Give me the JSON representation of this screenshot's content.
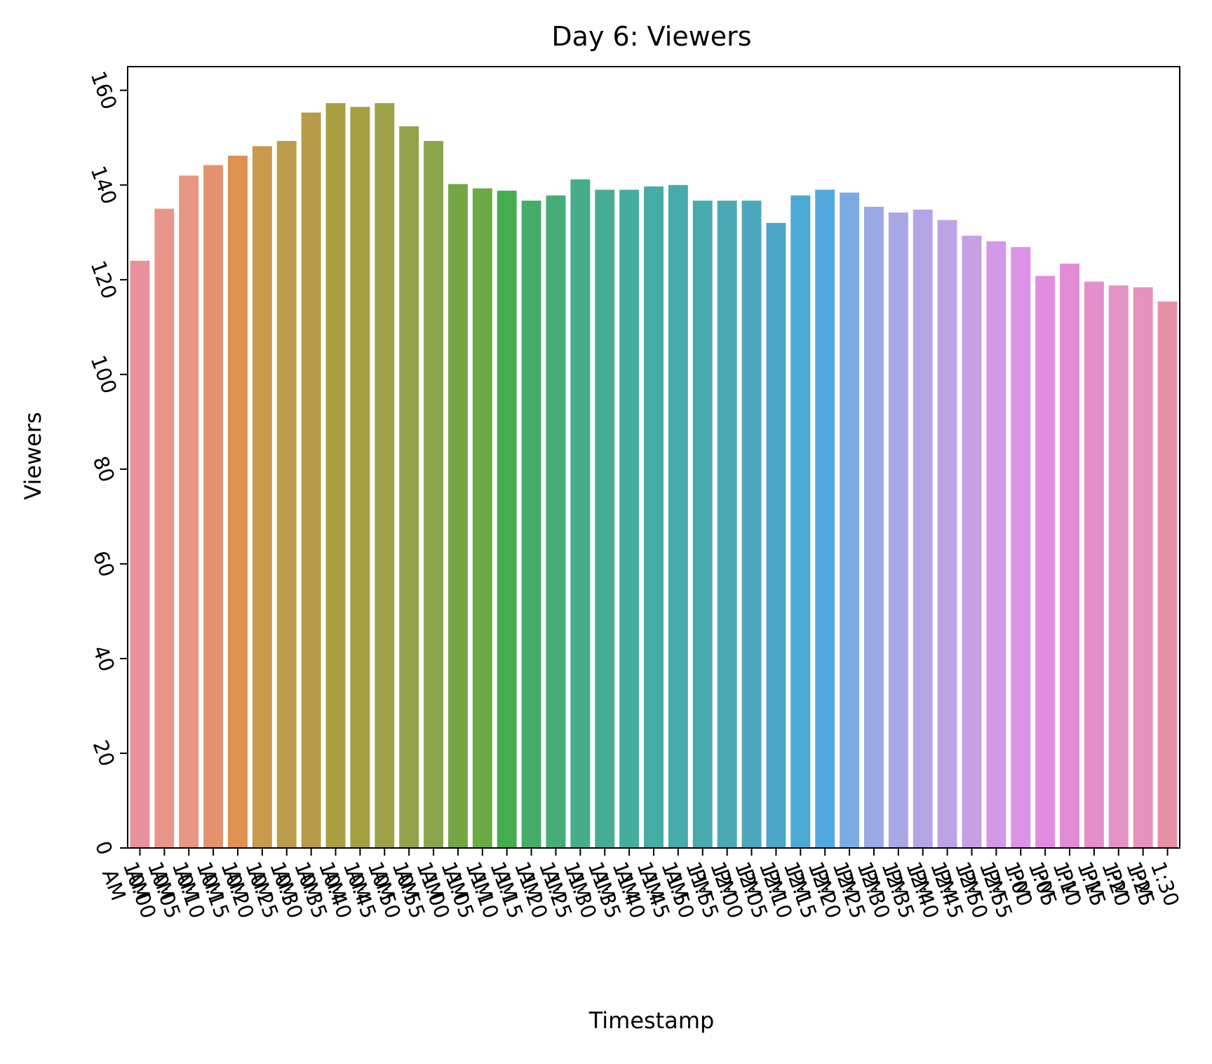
{
  "chart_data": {
    "type": "bar",
    "title": "Day 6: Viewers",
    "xlabel": "Timestamp",
    "ylabel": "Viewers",
    "ylim": [
      0,
      165
    ],
    "yticks": [
      0,
      20,
      40,
      60,
      80,
      100,
      120,
      140,
      160
    ],
    "categories": [
      "10:00 AM",
      "10:05 AM",
      "10:10 AM",
      "10:15 AM",
      "10:20 AM",
      "10:25 AM",
      "10:30 AM",
      "10:35 AM",
      "10:40 AM",
      "10:45 AM",
      "10:50 AM",
      "10:55 AM",
      "11:00 AM",
      "11:05 AM",
      "11:10 AM",
      "11:15 AM",
      "11:20 AM",
      "11:25 AM",
      "11:30 AM",
      "11:35 AM",
      "11:40 AM",
      "11:45 AM",
      "11:50 AM",
      "11:55 AM",
      "12:00 PM",
      "12:05 PM",
      "12:10 PM",
      "12:15 PM",
      "12:20 PM",
      "12:25 PM",
      "12:30 PM",
      "12:35 PM",
      "12:40 PM",
      "12:45 PM",
      "12:50 PM",
      "12:55 PM",
      "1:00 PM",
      "1:05 PM",
      "1:10 PM",
      "1:15 PM",
      "1:20 PM",
      "1:25 PM",
      "1:30 PM"
    ],
    "values": [
      124,
      135,
      142,
      144.2,
      146.2,
      148.2,
      149.3,
      155.3,
      157.3,
      156.5,
      157.3,
      152.4,
      149.3,
      140.2,
      139.3,
      138.8,
      136.7,
      137.8,
      141.2,
      139,
      139,
      139.7,
      140,
      136.7,
      136.7,
      136.7,
      132,
      137.8,
      139,
      138.4,
      135.4,
      134.2,
      134.8,
      132.6,
      129.3,
      128.1,
      126.9,
      120.8,
      123.4,
      119.6,
      118.8,
      118.4,
      115.4
    ],
    "colors": [
      "#e8919c",
      "#e9968a",
      "#e89782",
      "#e3916f",
      "#de9150",
      "#c99a4b",
      "#bb9c4c",
      "#b89b4a",
      "#aa9e40",
      "#a59f43",
      "#9da247",
      "#94a24a",
      "#8aa44b",
      "#74a645",
      "#6aab45",
      "#45ad50",
      "#46ac6c",
      "#46ad79",
      "#46ad89",
      "#46ad94",
      "#46ac9e",
      "#47aba6",
      "#48aaaa",
      "#49aaae",
      "#4aa9b4",
      "#4ba8bc",
      "#4ca7c6",
      "#4ca9d3",
      "#52a9e0",
      "#7aabe3",
      "#9aa9e4",
      "#a9a7e6",
      "#b3a5e6",
      "#bea3e4",
      "#c89fe3",
      "#d398e7",
      "#dc93e6",
      "#e38be0",
      "#e28cd6",
      "#e38fcb",
      "#e393c3",
      "#e592bc",
      "#e88fa8"
    ],
    "grid": false,
    "legend": "none"
  }
}
